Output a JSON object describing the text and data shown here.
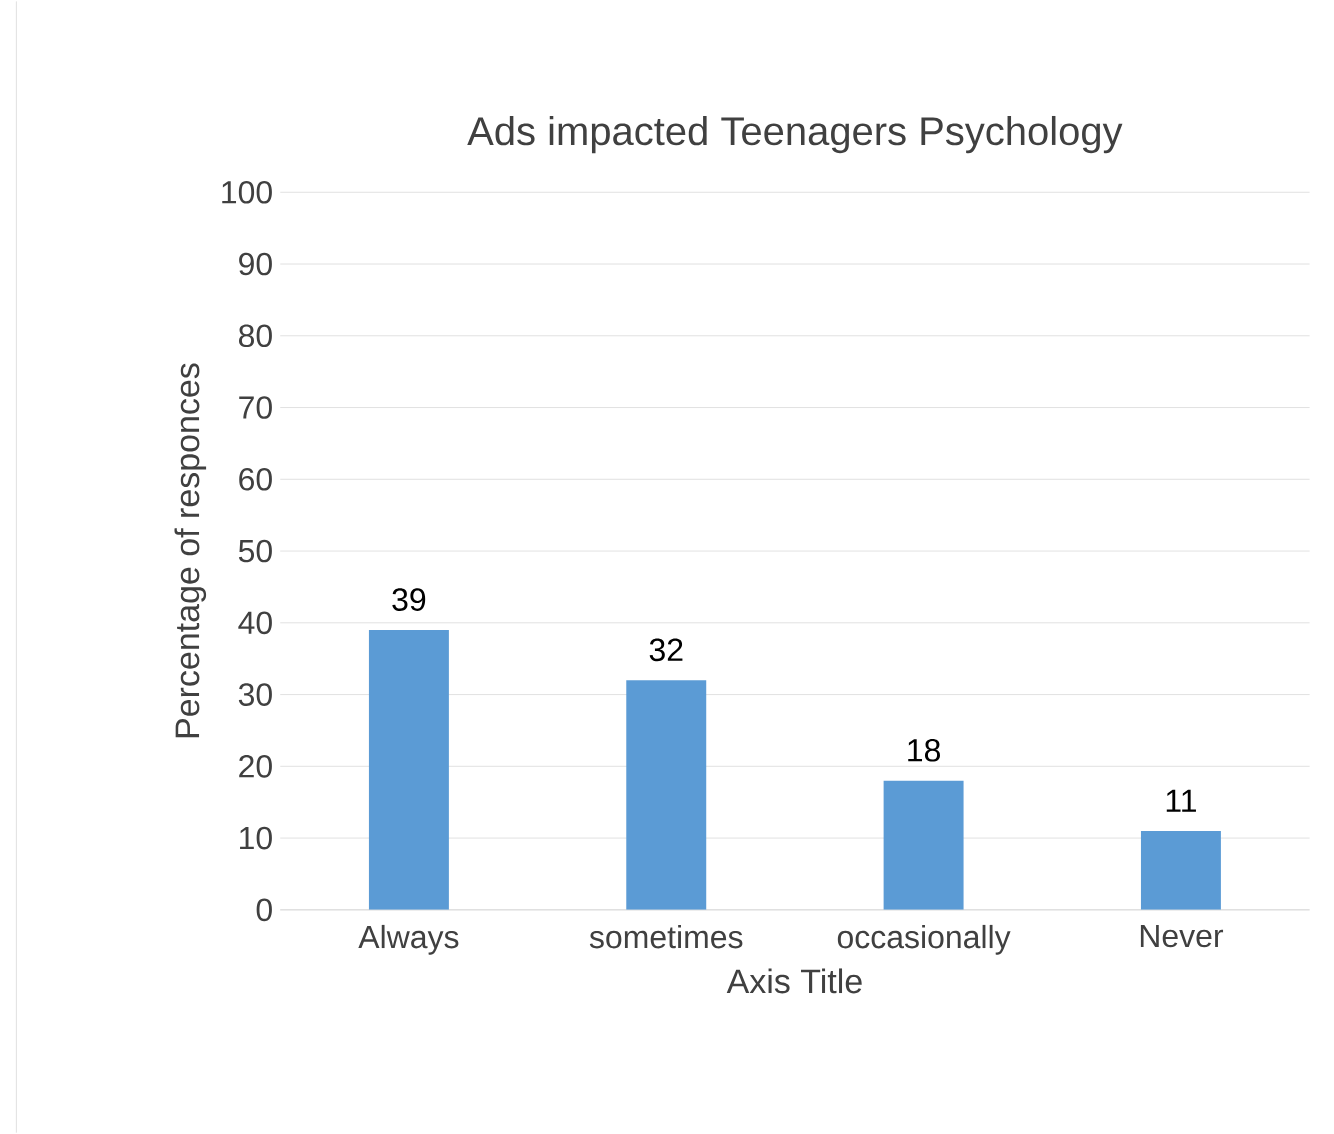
{
  "chart_data": {
    "type": "bar",
    "title": "Ads impacted  Teenagers  Psychology",
    "xlabel": "Axis Title",
    "ylabel": "Percentage of responces",
    "categories": [
      "Always",
      "sometimes",
      "occasionally",
      "Never"
    ],
    "values": [
      39,
      32,
      18,
      11
    ],
    "color": "#5b9bd5",
    "ylim": [
      0,
      100
    ],
    "yticks": [
      0,
      10,
      20,
      30,
      40,
      50,
      60,
      70,
      80,
      90,
      100
    ],
    "grid": "y",
    "data_labels": true
  }
}
